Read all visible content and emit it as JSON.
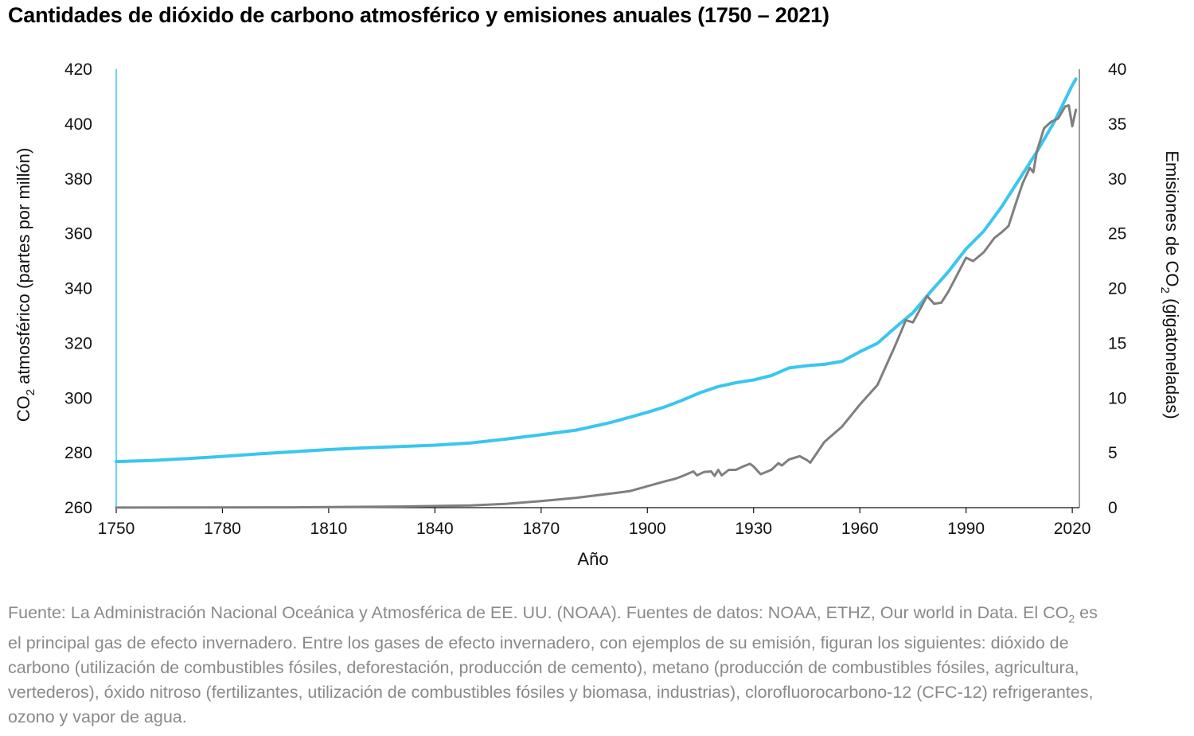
{
  "title": "Cantidades de dióxido de carbono atmosférico y emisiones anuales (1750 – 2021)",
  "footnote": {
    "part1": "Fuente: La Administración Nacional Oceánica y Atmosférica de EE. UU. (NOAA). Fuentes de datos: NOAA, ETHZ, Our world in Data. El CO",
    "sub": "2",
    "part2": " es el principal gas de efecto invernadero. Entre los gases de efecto invernadero, con ejemplos de su emisión, figuran los siguientes: dióxido de carbono (utilización de combustibles fósiles, deforestación, producción de cemento), metano (producción de combustibles fósiles, agricultura, vertederos), óxido nitroso (fertilizantes, utilización de combustibles fósiles y biomasa, industrias), clorofluorocarbono-12 (CFC-12) refrigerantes, ozono y vapor de agua."
  },
  "chart_data": {
    "type": "line",
    "xlabel": "Año",
    "ylabel_left": {
      "pre": "CO",
      "sub": "2",
      "post": " atmosférico (partes por millón)"
    },
    "ylabel_right": {
      "pre": "Emisiones de CO",
      "sub": "2",
      "post": " (gigatoneladas)"
    },
    "xlim": [
      1750,
      2022
    ],
    "ylim_left": [
      260,
      420
    ],
    "ylim_right": [
      0,
      40
    ],
    "x_ticks": [
      1750,
      1780,
      1810,
      1840,
      1870,
      1900,
      1930,
      1960,
      1990,
      2020
    ],
    "y_left_ticks": [
      260,
      280,
      300,
      320,
      340,
      360,
      380,
      400,
      420
    ],
    "y_right_ticks": [
      0,
      5,
      10,
      15,
      20,
      25,
      30,
      35,
      40
    ],
    "grid": false,
    "colors": {
      "co2_ppm": "#3ac6f0",
      "emissions": "#7f7f7f"
    },
    "series": [
      {
        "key": "co2_ppm",
        "axis": "left",
        "points": [
          [
            1750,
            276.8
          ],
          [
            1760,
            277.2
          ],
          [
            1770,
            277.9
          ],
          [
            1780,
            278.7
          ],
          [
            1790,
            279.6
          ],
          [
            1800,
            280.4
          ],
          [
            1810,
            281.2
          ],
          [
            1820,
            281.8
          ],
          [
            1830,
            282.3
          ],
          [
            1840,
            282.8
          ],
          [
            1850,
            283.6
          ],
          [
            1860,
            285.0
          ],
          [
            1870,
            286.6
          ],
          [
            1880,
            288.3
          ],
          [
            1890,
            291.2
          ],
          [
            1900,
            294.8
          ],
          [
            1905,
            296.8
          ],
          [
            1910,
            299.3
          ],
          [
            1915,
            302.0
          ],
          [
            1920,
            304.2
          ],
          [
            1925,
            305.6
          ],
          [
            1930,
            306.6
          ],
          [
            1935,
            308.2
          ],
          [
            1940,
            311.0
          ],
          [
            1945,
            311.8
          ],
          [
            1950,
            312.3
          ],
          [
            1955,
            313.4
          ],
          [
            1960,
            316.9
          ],
          [
            1965,
            320.0
          ],
          [
            1970,
            325.7
          ],
          [
            1975,
            331.1
          ],
          [
            1980,
            338.8
          ],
          [
            1985,
            346.1
          ],
          [
            1990,
            354.4
          ],
          [
            1995,
            360.9
          ],
          [
            2000,
            369.7
          ],
          [
            2005,
            379.8
          ],
          [
            2010,
            389.9
          ],
          [
            2015,
            401.0
          ],
          [
            2020,
            414.2
          ],
          [
            2021,
            416.4
          ]
        ]
      },
      {
        "key": "emissions",
        "axis": "right",
        "points": [
          [
            1750,
            0.01
          ],
          [
            1800,
            0.03
          ],
          [
            1830,
            0.1
          ],
          [
            1850,
            0.2
          ],
          [
            1860,
            0.35
          ],
          [
            1870,
            0.6
          ],
          [
            1880,
            0.9
          ],
          [
            1890,
            1.3
          ],
          [
            1895,
            1.5
          ],
          [
            1900,
            1.95
          ],
          [
            1905,
            2.4
          ],
          [
            1908,
            2.65
          ],
          [
            1910,
            2.9
          ],
          [
            1913,
            3.3
          ],
          [
            1914,
            2.95
          ],
          [
            1916,
            3.25
          ],
          [
            1918,
            3.3
          ],
          [
            1919,
            2.9
          ],
          [
            1920,
            3.45
          ],
          [
            1921,
            2.95
          ],
          [
            1923,
            3.45
          ],
          [
            1925,
            3.45
          ],
          [
            1927,
            3.75
          ],
          [
            1929,
            4.0
          ],
          [
            1930,
            3.75
          ],
          [
            1932,
            3.05
          ],
          [
            1935,
            3.45
          ],
          [
            1937,
            4.05
          ],
          [
            1938,
            3.85
          ],
          [
            1940,
            4.4
          ],
          [
            1943,
            4.7
          ],
          [
            1945,
            4.35
          ],
          [
            1946,
            4.1
          ],
          [
            1950,
            6.0
          ],
          [
            1955,
            7.4
          ],
          [
            1960,
            9.4
          ],
          [
            1965,
            11.2
          ],
          [
            1970,
            14.8
          ],
          [
            1973,
            17.1
          ],
          [
            1975,
            16.9
          ],
          [
            1979,
            19.3
          ],
          [
            1981,
            18.6
          ],
          [
            1983,
            18.7
          ],
          [
            1985,
            19.7
          ],
          [
            1990,
            22.8
          ],
          [
            1992,
            22.5
          ],
          [
            1995,
            23.3
          ],
          [
            1998,
            24.6
          ],
          [
            2000,
            25.1
          ],
          [
            2002,
            25.7
          ],
          [
            2004,
            27.7
          ],
          [
            2006,
            29.6
          ],
          [
            2008,
            31.0
          ],
          [
            2009,
            30.6
          ],
          [
            2010,
            32.5
          ],
          [
            2012,
            34.6
          ],
          [
            2014,
            35.2
          ],
          [
            2016,
            35.5
          ],
          [
            2018,
            36.6
          ],
          [
            2019,
            36.7
          ],
          [
            2020,
            34.8
          ],
          [
            2021,
            36.3
          ]
        ]
      }
    ]
  }
}
